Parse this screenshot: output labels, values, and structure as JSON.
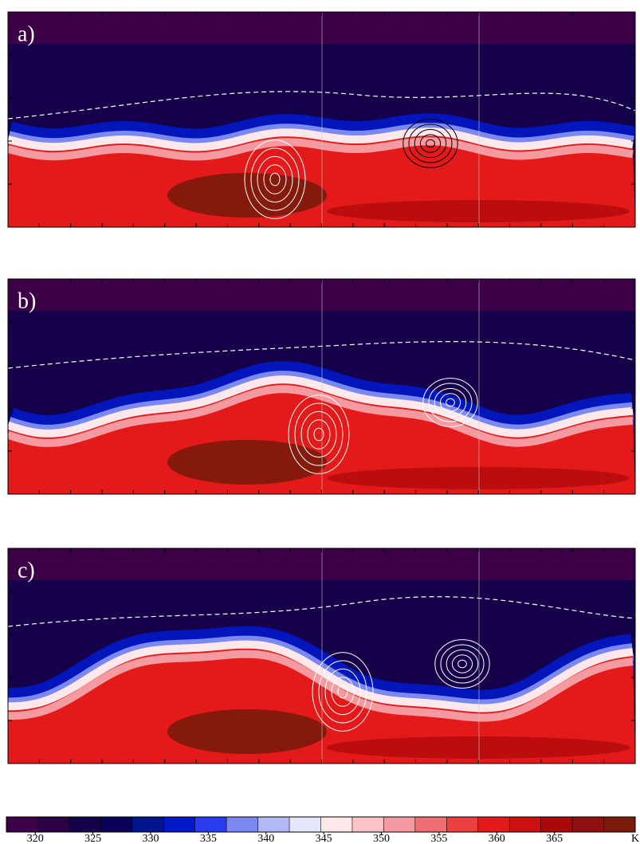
{
  "panels": [
    {
      "label": "a)"
    },
    {
      "label": "b)"
    },
    {
      "label": "c)"
    }
  ],
  "colorbar": {
    "ticks": [
      320,
      325,
      330,
      335,
      340,
      345,
      350,
      355,
      360,
      365
    ],
    "unit": "K",
    "clim": [
      317.5,
      372
    ],
    "colors": [
      "#3b0046",
      "#2b0045",
      "#15004a",
      "#0a005a",
      "#00148c",
      "#0018c8",
      "#2a3cf0",
      "#7b88f0",
      "#b2b8f4",
      "#e4e6fb",
      "#fde9ec",
      "#fbc2c8",
      "#f59aa0",
      "#ef6e74",
      "#ea4040",
      "#e41a1a",
      "#cc1010",
      "#aa0808",
      "#8f1010",
      "#7a1a0a"
    ]
  }
}
